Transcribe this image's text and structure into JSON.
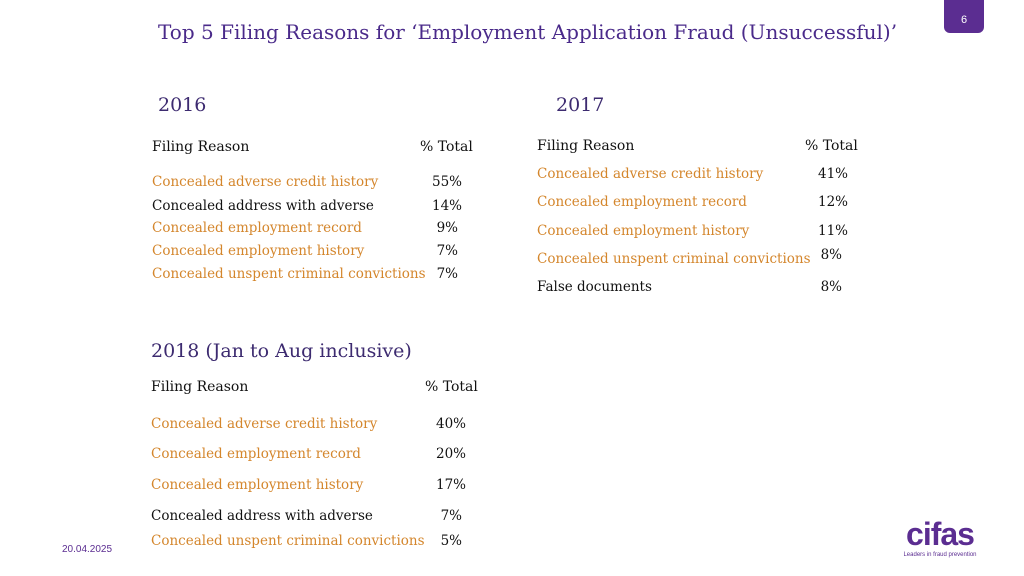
{
  "slide": {
    "title": "Top 5 Filing Reasons for ‘Employment Application Fraud (Unsuccessful)’",
    "page_number": "6",
    "date": "20.04.2025",
    "logo_text": "cifas",
    "logo_tagline": "Leaders in fraud prevention"
  },
  "tables": {
    "t2016": {
      "year": "2016",
      "col_reason": "Filing Reason",
      "col_pct": "% Total",
      "rows": [
        {
          "reason": "Concealed adverse credit history",
          "pct": "55%"
        },
        {
          "reason": "Concealed address with adverse",
          "pct": "14%"
        },
        {
          "reason": "Concealed employment record",
          "pct": "9%"
        },
        {
          "reason": "Concealed employment history",
          "pct": "7%"
        },
        {
          "reason": "Concealed unspent criminal convictions",
          "pct": "7%"
        }
      ]
    },
    "t2017": {
      "year": "2017",
      "col_reason": "Filing Reason",
      "col_pct": "% Total",
      "rows": [
        {
          "reason": "Concealed adverse credit history",
          "pct": "41%"
        },
        {
          "reason": "Concealed employment record",
          "pct": "12%"
        },
        {
          "reason": "Concealed employment history",
          "pct": "11%"
        },
        {
          "reason": "Concealed unspent criminal convictions",
          "pct": "8%"
        },
        {
          "reason": "False documents",
          "pct": "8%"
        }
      ]
    },
    "t2018": {
      "year": "2018 (Jan to Aug inclusive)",
      "col_reason": "Filing Reason",
      "col_pct": "% Total",
      "rows": [
        {
          "reason": "Concealed adverse credit history",
          "pct": "40%"
        },
        {
          "reason": "Concealed employment record",
          "pct": "20%"
        },
        {
          "reason": "Concealed employment history",
          "pct": "17%"
        },
        {
          "reason": "Concealed address with adverse",
          "pct": "7%"
        },
        {
          "reason": "Concealed unspent criminal convictions",
          "pct": "5%"
        }
      ]
    }
  },
  "colors": {
    "title": "#4a2a8a",
    "highlight": "#d4862c",
    "badge": "#5b2d91"
  }
}
